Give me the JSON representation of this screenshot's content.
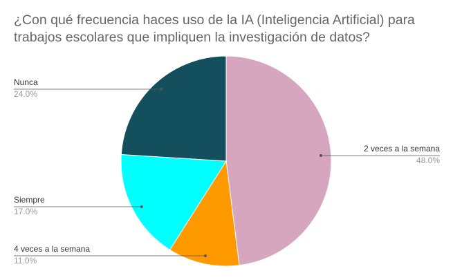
{
  "chart_data": {
    "type": "pie",
    "title_lines": [
      "¿Con qué frecuencia haces uso de la IA (Inteligencia Artificial) para",
      "trabajos escolares que impliquen la investigación de datos?"
    ],
    "slices": [
      {
        "label": "2 veces a la semana",
        "value": 48.0,
        "pct_label": "48.0%",
        "color": "#d5a6bd"
      },
      {
        "label": "4 veces a la semana",
        "value": 11.0,
        "pct_label": "11.0%",
        "color": "#ff9900"
      },
      {
        "label": "Siempre",
        "value": 17.0,
        "pct_label": "17.0%",
        "color": "#00ffff"
      },
      {
        "label": "Nunca",
        "value": 24.0,
        "pct_label": "24.0%",
        "color": "#134f5c"
      }
    ]
  }
}
